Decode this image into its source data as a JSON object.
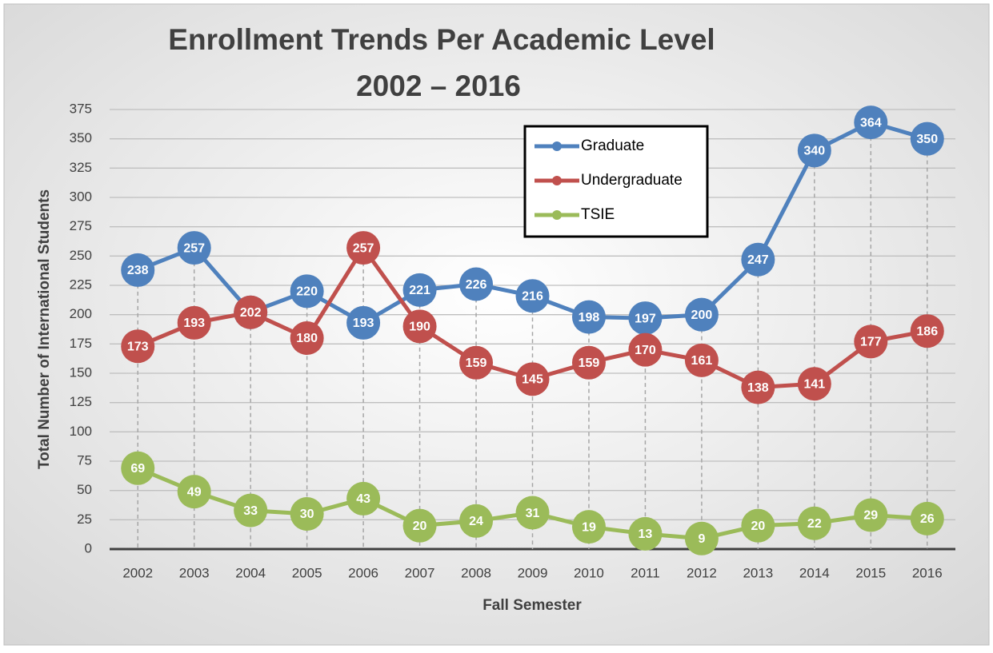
{
  "chart_data": {
    "type": "line",
    "title": "Enrollment Trends Per Academic Level",
    "subtitle": "2002 – 2016",
    "x_label": "Fall Semester",
    "y_label": "Total Number of International Students",
    "categories": [
      "2002",
      "2003",
      "2004",
      "2005",
      "2006",
      "2007",
      "2008",
      "2009",
      "2010",
      "2011",
      "2012",
      "2013",
      "2014",
      "2015",
      "2016"
    ],
    "series": [
      {
        "name": "Graduate",
        "color": "#4f81bd",
        "values": [
          238,
          257,
          202,
          220,
          193,
          221,
          226,
          216,
          198,
          197,
          200,
          247,
          340,
          364,
          350
        ]
      },
      {
        "name": "Undergraduate",
        "color": "#c0504d",
        "values": [
          173,
          193,
          202,
          180,
          257,
          190,
          159,
          145,
          159,
          170,
          161,
          138,
          141,
          177,
          186
        ]
      },
      {
        "name": "TSIE",
        "color": "#9bbb59",
        "values": [
          69,
          49,
          33,
          30,
          43,
          20,
          24,
          31,
          19,
          13,
          9,
          20,
          22,
          29,
          26
        ]
      }
    ],
    "ylim": [
      0,
      375
    ],
    "yticks": [
      0,
      25,
      50,
      75,
      100,
      125,
      150,
      175,
      200,
      225,
      250,
      275,
      300,
      325,
      350,
      375
    ],
    "grid": true,
    "legend": "upper right"
  }
}
